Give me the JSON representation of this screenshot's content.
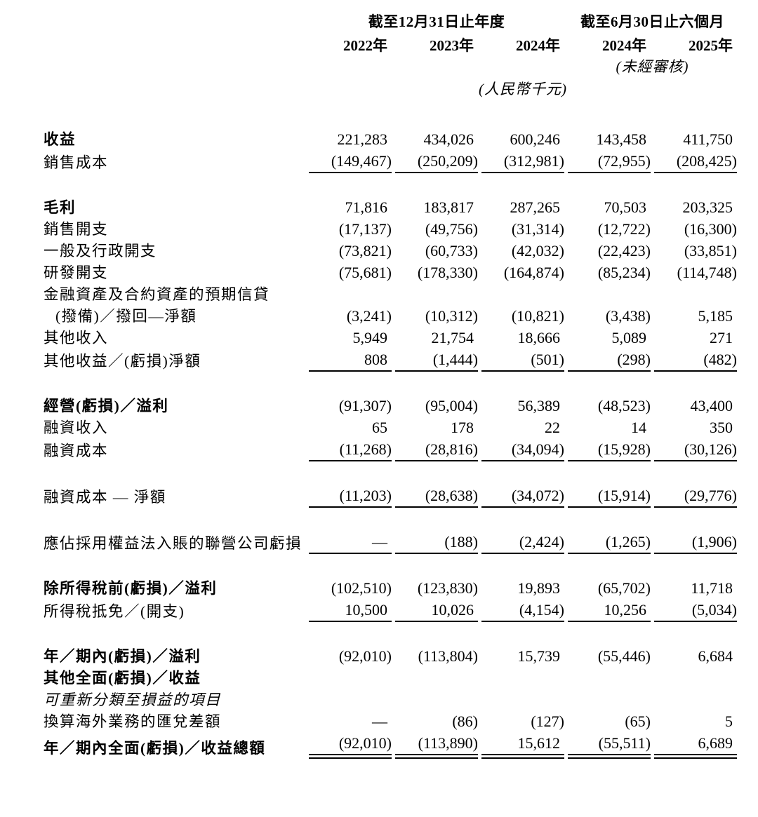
{
  "table": {
    "header": {
      "annual_period": "截至12月31日止年度",
      "interim_period": "截至6月30日止六個月",
      "years": [
        "2022年",
        "2023年",
        "2024年",
        "2024年",
        "2025年"
      ],
      "unaudited_note": "(未經審核)",
      "currency_note": "(人民幣千元)"
    },
    "rows": [
      {
        "label": "收益",
        "bold": true,
        "values": [
          "221,283",
          "434,026",
          "600,246",
          "143,458",
          "411,750"
        ]
      },
      {
        "label": "銷售成本",
        "values": [
          "(149,467)",
          "(250,209)",
          "(312,981)",
          "(72,955)",
          "(208,425)"
        ],
        "underline": "single"
      },
      {
        "type": "spacer"
      },
      {
        "label": "毛利",
        "bold": true,
        "values": [
          "71,816",
          "183,817",
          "287,265",
          "70,503",
          "203,325"
        ]
      },
      {
        "label": "銷售開支",
        "values": [
          "(17,137)",
          "(49,756)",
          "(31,314)",
          "(12,722)",
          "(16,300)"
        ]
      },
      {
        "label": "一般及行政開支",
        "values": [
          "(73,821)",
          "(60,733)",
          "(42,032)",
          "(22,423)",
          "(33,851)"
        ]
      },
      {
        "label": "研發開支",
        "values": [
          "(75,681)",
          "(178,330)",
          "(164,874)",
          "(85,234)",
          "(114,748)"
        ]
      },
      {
        "label": "金融資產及合約資產的預期信貸",
        "values": []
      },
      {
        "label": "(撥備)／撥回—淨額",
        "indent": true,
        "values": [
          "(3,241)",
          "(10,312)",
          "(10,821)",
          "(3,438)",
          "5,185"
        ]
      },
      {
        "label": "其他收入",
        "values": [
          "5,949",
          "21,754",
          "18,666",
          "5,089",
          "271"
        ]
      },
      {
        "label": "其他收益／(虧損)淨額",
        "values": [
          "808",
          "(1,444)",
          "(501)",
          "(298)",
          "(482)"
        ],
        "underline": "single"
      },
      {
        "type": "spacer"
      },
      {
        "label": "經營(虧損)／溢利",
        "bold": true,
        "values": [
          "(91,307)",
          "(95,004)",
          "56,389",
          "(48,523)",
          "43,400"
        ]
      },
      {
        "label": "融資收入",
        "values": [
          "65",
          "178",
          "22",
          "14",
          "350"
        ]
      },
      {
        "label": "融資成本",
        "values": [
          "(11,268)",
          "(28,816)",
          "(34,094)",
          "(15,928)",
          "(30,126)"
        ],
        "underline": "single"
      },
      {
        "type": "spacer"
      },
      {
        "label": "融資成本 — 淨額",
        "values": [
          "(11,203)",
          "(28,638)",
          "(34,072)",
          "(15,914)",
          "(29,776)"
        ],
        "underline": "single"
      },
      {
        "type": "spacer"
      },
      {
        "label": "應佔採用權益法入賬的聯營公司虧損",
        "values": [
          "—",
          "(188)",
          "(2,424)",
          "(1,265)",
          "(1,906)"
        ],
        "underline": "single"
      },
      {
        "type": "spacer"
      },
      {
        "label": "除所得稅前(虧損)／溢利",
        "bold": true,
        "values": [
          "(102,510)",
          "(123,830)",
          "19,893",
          "(65,702)",
          "11,718"
        ]
      },
      {
        "label": "所得稅抵免／(開支)",
        "values": [
          "10,500",
          "10,026",
          "(4,154)",
          "10,256",
          "(5,034)"
        ],
        "underline": "single"
      },
      {
        "type": "spacer"
      },
      {
        "label": "年／期內(虧損)／溢利",
        "bold": true,
        "values": [
          "(92,010)",
          "(113,804)",
          "15,739",
          "(55,446)",
          "6,684"
        ]
      },
      {
        "label": "其他全面(虧損)／收益",
        "bold": true,
        "values": []
      },
      {
        "label": "可重新分類至損益的項目",
        "italic": true,
        "values": []
      },
      {
        "label": "換算海外業務的匯兌差額",
        "values": [
          "—",
          "(86)",
          "(127)",
          "(65)",
          "5"
        ]
      },
      {
        "label": "年／期內全面(虧損)／收益總額",
        "bold": true,
        "values": [
          "(92,010)",
          "(113,890)",
          "15,612",
          "(55,511)",
          "6,689"
        ],
        "underline": "double"
      }
    ]
  }
}
